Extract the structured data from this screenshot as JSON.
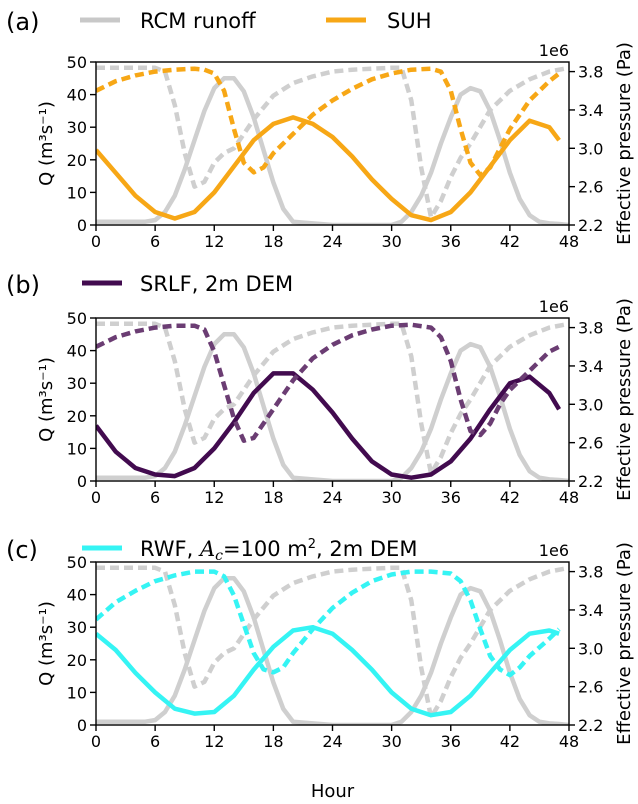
{
  "chart_data": [
    {
      "type": "line",
      "panel_label": "(a)",
      "xlabel": "",
      "ylabel": "Q (m³s⁻¹)",
      "y2label": "Effective pressure (Pa)",
      "y2_multiplier": "1e6",
      "xlim": [
        0,
        48
      ],
      "ylim": [
        0,
        50
      ],
      "y2lim": [
        2.2,
        3.9
      ],
      "x_ticks": [
        "0",
        "6",
        "12",
        "18",
        "24",
        "30",
        "36",
        "42",
        "48"
      ],
      "y_ticks": [
        "0",
        "10",
        "20",
        "30",
        "40",
        "50"
      ],
      "y2_ticks": [
        "2.2",
        "2.6",
        "3.0",
        "3.4",
        "3.8"
      ],
      "legend": [
        {
          "label": "RCM runoff",
          "color": "#c8c8c8"
        },
        {
          "label": "SUH",
          "color": "#f7a716"
        }
      ],
      "series": [
        {
          "name": "RCM runoff",
          "style": "solid",
          "color": "#cfcfcf",
          "axis": "Q",
          "x": [
            0,
            5,
            6,
            7,
            8,
            9,
            10,
            11,
            12,
            13,
            14,
            15,
            16,
            17,
            18,
            19,
            20,
            24,
            29,
            30,
            31,
            32,
            33,
            34,
            35,
            36,
            37,
            38,
            39,
            40,
            41,
            42,
            43,
            44,
            45,
            46,
            47,
            48
          ],
          "y": [
            1,
            1,
            1.5,
            4,
            9,
            17,
            26,
            35,
            42,
            45,
            45,
            41,
            33,
            23,
            13,
            5,
            1,
            0,
            0,
            0,
            1,
            4,
            9,
            16,
            25,
            33,
            40,
            42,
            41,
            35,
            26,
            16,
            8,
            3,
            1,
            0.5,
            0.3,
            0
          ]
        },
        {
          "name": "Effective pressure (RCM)",
          "style": "dashed",
          "color": "#cfcfcf",
          "axis": "Pa",
          "x": [
            0,
            6,
            7,
            8,
            9,
            10,
            11,
            12,
            13,
            14,
            16,
            18,
            20,
            22,
            24,
            26,
            28,
            30,
            31,
            32,
            33,
            34,
            35,
            36,
            37,
            38,
            40,
            42,
            44,
            46,
            48
          ],
          "y": [
            3.84,
            3.84,
            3.8,
            3.45,
            2.95,
            2.6,
            2.65,
            2.85,
            2.95,
            3.0,
            3.3,
            3.55,
            3.68,
            3.75,
            3.8,
            3.82,
            3.83,
            3.84,
            3.84,
            3.5,
            2.8,
            2.28,
            2.45,
            2.7,
            2.9,
            3.05,
            3.4,
            3.6,
            3.72,
            3.8,
            3.84
          ]
        },
        {
          "name": "SUH",
          "style": "solid",
          "color": "#f7a716",
          "axis": "Q",
          "x": [
            0,
            2,
            4,
            6,
            8,
            10,
            12,
            14,
            16,
            18,
            20,
            22,
            24,
            26,
            28,
            30,
            32,
            34,
            36,
            38,
            40,
            42,
            44,
            46,
            47
          ],
          "y": [
            23,
            16,
            9,
            4,
            2,
            4,
            10,
            18,
            26,
            31,
            33,
            31,
            27,
            21,
            14,
            8,
            3,
            1.5,
            4,
            10,
            18,
            26,
            32,
            30,
            26
          ]
        },
        {
          "name": "SUH effective pressure",
          "style": "dashed",
          "color": "#f7a716",
          "axis": "Pa",
          "x": [
            0,
            2,
            4,
            6,
            8,
            10,
            11,
            12,
            13,
            14,
            15,
            16,
            17,
            18,
            20,
            22,
            24,
            26,
            28,
            30,
            32,
            34,
            35,
            36,
            37,
            38,
            39,
            40,
            41,
            42,
            44,
            46,
            47
          ],
          "y": [
            3.6,
            3.7,
            3.76,
            3.8,
            3.82,
            3.83,
            3.82,
            3.78,
            3.6,
            3.2,
            2.85,
            2.75,
            2.8,
            2.95,
            3.15,
            3.35,
            3.5,
            3.62,
            3.72,
            3.78,
            3.82,
            3.83,
            3.8,
            3.6,
            3.2,
            2.85,
            2.72,
            2.8,
            3.0,
            3.2,
            3.5,
            3.7,
            3.78
          ]
        }
      ]
    },
    {
      "type": "line",
      "panel_label": "(b)",
      "xlabel": "",
      "ylabel": "Q (m³s⁻¹)",
      "y2label": "Effective pressure (Pa)",
      "y2_multiplier": "1e6",
      "xlim": [
        0,
        48
      ],
      "ylim": [
        0,
        50
      ],
      "y2lim": [
        2.2,
        3.9
      ],
      "x_ticks": [
        "0",
        "6",
        "12",
        "18",
        "24",
        "30",
        "36",
        "42",
        "48"
      ],
      "y_ticks": [
        "0",
        "10",
        "20",
        "30",
        "40",
        "50"
      ],
      "y2_ticks": [
        "2.2",
        "2.6",
        "3.0",
        "3.4",
        "3.8"
      ],
      "legend": [
        {
          "label": "SRLF, 2m DEM",
          "color": "#420b4f"
        }
      ],
      "series": [
        {
          "name": "RCM runoff",
          "style": "solid",
          "color": "#cfcfcf",
          "axis": "Q",
          "x": [
            0,
            5,
            6,
            7,
            8,
            9,
            10,
            11,
            12,
            13,
            14,
            15,
            16,
            17,
            18,
            19,
            20,
            24,
            29,
            30,
            31,
            32,
            33,
            34,
            35,
            36,
            37,
            38,
            39,
            40,
            41,
            42,
            43,
            44,
            45,
            46,
            47,
            48
          ],
          "y": [
            1,
            1,
            1.5,
            4,
            9,
            17,
            26,
            35,
            42,
            45,
            45,
            41,
            33,
            23,
            13,
            5,
            1,
            0,
            0,
            0,
            1,
            4,
            9,
            16,
            25,
            33,
            40,
            42,
            41,
            35,
            26,
            16,
            8,
            3,
            1,
            0.5,
            0.3,
            0
          ]
        },
        {
          "name": "Effective pressure (RCM)",
          "style": "dashed",
          "color": "#cfcfcf",
          "axis": "Pa",
          "x": [
            0,
            6,
            7,
            8,
            9,
            10,
            11,
            12,
            13,
            14,
            16,
            18,
            20,
            22,
            24,
            26,
            28,
            30,
            31,
            32,
            33,
            34,
            35,
            36,
            37,
            38,
            40,
            42,
            44,
            46,
            48
          ],
          "y": [
            3.84,
            3.84,
            3.8,
            3.45,
            2.95,
            2.6,
            2.65,
            2.85,
            2.95,
            3.0,
            3.3,
            3.55,
            3.68,
            3.75,
            3.8,
            3.82,
            3.83,
            3.84,
            3.84,
            3.5,
            2.8,
            2.28,
            2.45,
            2.7,
            2.9,
            3.05,
            3.4,
            3.6,
            3.72,
            3.8,
            3.84
          ]
        },
        {
          "name": "SRLF, 2m DEM",
          "style": "solid",
          "color": "#420b4f",
          "axis": "Q",
          "x": [
            0,
            2,
            4,
            6,
            8,
            10,
            12,
            14,
            16,
            18,
            20,
            22,
            24,
            26,
            28,
            30,
            32,
            34,
            36,
            38,
            40,
            42,
            44,
            46,
            47
          ],
          "y": [
            17,
            9,
            4,
            2,
            1.5,
            4,
            10,
            18,
            27,
            33,
            33,
            28,
            21,
            13,
            6,
            2,
            1,
            2,
            6,
            13,
            22,
            30,
            32,
            27,
            22
          ]
        },
        {
          "name": "SRLF effective pressure",
          "style": "dashed",
          "color": "#6b3d73",
          "axis": "Pa",
          "x": [
            0,
            2,
            4,
            6,
            8,
            10,
            11,
            12,
            13,
            14,
            15,
            16,
            17,
            18,
            20,
            22,
            24,
            26,
            28,
            30,
            32,
            34,
            35,
            36,
            37,
            38,
            39,
            40,
            41,
            42,
            44,
            46,
            47
          ],
          "y": [
            3.6,
            3.7,
            3.76,
            3.8,
            3.82,
            3.82,
            3.78,
            3.55,
            3.2,
            2.85,
            2.62,
            2.65,
            2.8,
            2.95,
            3.25,
            3.48,
            3.62,
            3.72,
            3.78,
            3.82,
            3.83,
            3.8,
            3.7,
            3.45,
            3.05,
            2.72,
            2.68,
            2.8,
            3.0,
            3.15,
            3.35,
            3.55,
            3.6
          ]
        }
      ]
    },
    {
      "type": "line",
      "panel_label": "(c)",
      "xlabel": "Hour",
      "ylabel": "Q (m³s⁻¹)",
      "y2label": "Effective pressure (Pa)",
      "y2_multiplier": "1e6",
      "xlim": [
        0,
        48
      ],
      "ylim": [
        0,
        50
      ],
      "y2lim": [
        2.2,
        3.9
      ],
      "x_ticks": [
        "0",
        "6",
        "12",
        "18",
        "24",
        "30",
        "36",
        "42",
        "48"
      ],
      "y_ticks": [
        "0",
        "10",
        "20",
        "30",
        "40",
        "50"
      ],
      "y2_ticks": [
        "2.2",
        "2.6",
        "3.0",
        "3.4",
        "3.8"
      ],
      "legend": [
        {
          "label_parts": [
            "RWF, ",
            "A",
            "c",
            "=100 m",
            "2",
            ", 2m DEM"
          ],
          "color": "#35f4f4"
        }
      ],
      "series": [
        {
          "name": "RCM runoff",
          "style": "solid",
          "color": "#cfcfcf",
          "axis": "Q",
          "x": [
            0,
            5,
            6,
            7,
            8,
            9,
            10,
            11,
            12,
            13,
            14,
            15,
            16,
            17,
            18,
            19,
            20,
            24,
            29,
            30,
            31,
            32,
            33,
            34,
            35,
            36,
            37,
            38,
            39,
            40,
            41,
            42,
            43,
            44,
            45,
            46,
            47,
            48
          ],
          "y": [
            1,
            1,
            1.5,
            4,
            9,
            17,
            26,
            35,
            42,
            45,
            45,
            41,
            33,
            23,
            13,
            5,
            1,
            0,
            0,
            0,
            1,
            4,
            9,
            16,
            25,
            33,
            40,
            42,
            41,
            35,
            26,
            16,
            8,
            3,
            1,
            0.5,
            0.3,
            0
          ]
        },
        {
          "name": "Effective pressure (RCM)",
          "style": "dashed",
          "color": "#cfcfcf",
          "axis": "Pa",
          "x": [
            0,
            6,
            7,
            8,
            9,
            10,
            11,
            12,
            13,
            14,
            16,
            18,
            20,
            22,
            24,
            26,
            28,
            30,
            31,
            32,
            33,
            34,
            35,
            36,
            37,
            38,
            40,
            42,
            44,
            46,
            48
          ],
          "y": [
            3.84,
            3.84,
            3.8,
            3.45,
            2.95,
            2.6,
            2.65,
            2.85,
            2.95,
            3.0,
            3.3,
            3.55,
            3.68,
            3.75,
            3.8,
            3.82,
            3.83,
            3.84,
            3.84,
            3.5,
            2.8,
            2.28,
            2.45,
            2.7,
            2.9,
            3.05,
            3.4,
            3.6,
            3.72,
            3.8,
            3.84
          ]
        },
        {
          "name": "RWF",
          "style": "solid",
          "color": "#35f4f4",
          "axis": "Q",
          "x": [
            0,
            2,
            4,
            6,
            8,
            10,
            12,
            14,
            16,
            18,
            20,
            22,
            24,
            26,
            28,
            30,
            32,
            34,
            36,
            38,
            40,
            42,
            44,
            46,
            47
          ],
          "y": [
            28,
            23,
            16,
            10,
            5,
            3.5,
            4,
            9,
            17,
            24,
            29,
            30,
            28,
            23,
            17,
            10,
            5,
            3,
            4,
            9,
            16,
            23,
            28,
            29,
            28
          ]
        },
        {
          "name": "RWF effective pressure",
          "style": "dashed",
          "color": "#35f4f4",
          "axis": "Pa",
          "x": [
            0,
            2,
            4,
            6,
            8,
            10,
            12,
            13,
            14,
            15,
            16,
            17,
            18,
            19,
            20,
            22,
            24,
            26,
            28,
            30,
            32,
            34,
            36,
            37,
            38,
            39,
            40,
            41,
            42,
            43,
            44,
            46,
            47
          ],
          "y": [
            3.3,
            3.48,
            3.6,
            3.7,
            3.76,
            3.8,
            3.8,
            3.75,
            3.55,
            3.25,
            2.95,
            2.78,
            2.75,
            2.8,
            2.95,
            3.2,
            3.42,
            3.58,
            3.7,
            3.77,
            3.8,
            3.8,
            3.78,
            3.7,
            3.5,
            3.2,
            2.92,
            2.78,
            2.72,
            2.8,
            2.92,
            3.1,
            3.2
          ]
        }
      ]
    }
  ]
}
